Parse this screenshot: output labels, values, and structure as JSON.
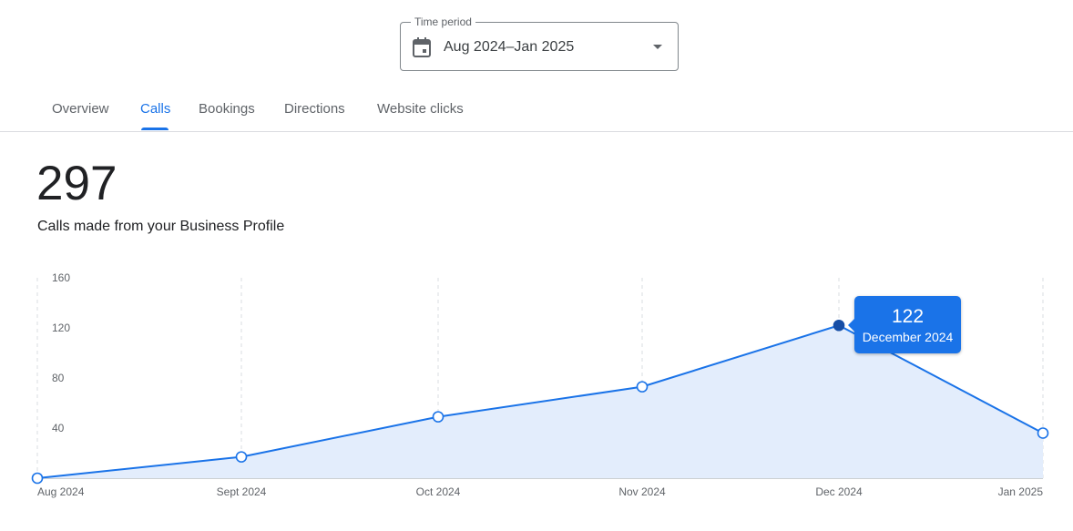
{
  "time_period": {
    "label": "Time period",
    "value": "Aug 2024–Jan 2025",
    "icon": "calendar-icon",
    "dropdown_icon": "dropdown-caret-icon"
  },
  "tabs": [
    {
      "label": "Overview",
      "active": false
    },
    {
      "label": "Calls",
      "active": true
    },
    {
      "label": "Bookings",
      "active": false
    },
    {
      "label": "Directions",
      "active": false
    },
    {
      "label": "Website clicks",
      "active": false
    }
  ],
  "summary": {
    "total": "297",
    "caption": "Calls made from your Business Profile"
  },
  "tooltip": {
    "value": "122",
    "label": "December 2024"
  },
  "colors": {
    "accent": "#1a73e8",
    "line": "#1a73e8",
    "area_fill": "#e3edfc",
    "highlight_point": "#174ea6"
  },
  "chart_data": {
    "type": "area",
    "x": [
      "Aug 2024",
      "Sept 2024",
      "Oct 2024",
      "Nov 2024",
      "Dec 2024",
      "Jan 2025"
    ],
    "values": [
      0,
      17,
      49,
      73,
      122,
      36
    ],
    "y_ticks": [
      40,
      80,
      120,
      160
    ],
    "ylim": [
      0,
      160
    ],
    "grid": "vertical-dashed",
    "highlighted_index": 4
  }
}
